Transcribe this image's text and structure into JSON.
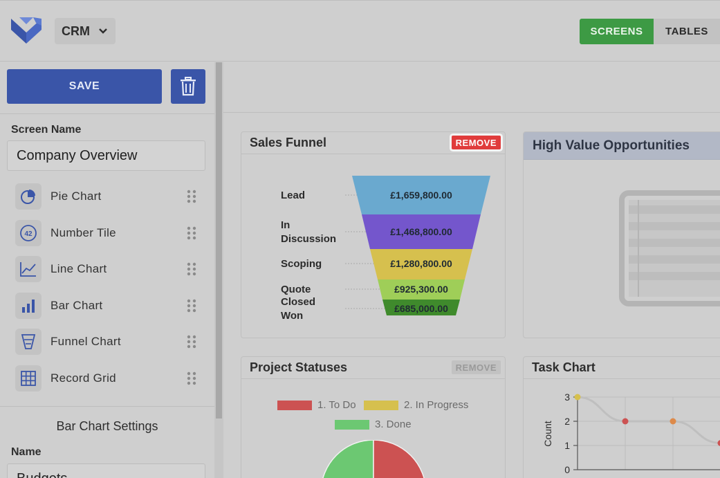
{
  "header": {
    "app_name": "CRM",
    "nav": [
      {
        "label": "SCREENS",
        "active": true
      },
      {
        "label": "TABLES",
        "active": false
      }
    ],
    "colors": {
      "active": "#3d9a44",
      "primary": "#3a55a8",
      "danger": "#e03c3c"
    }
  },
  "sidebar": {
    "save_label": "SAVE",
    "screen_name_label": "Screen Name",
    "screen_name_value": "Company Overview",
    "components": [
      {
        "label": "Pie Chart",
        "icon": "pie-chart-icon"
      },
      {
        "label": "Number Tile",
        "icon": "number-tile-icon"
      },
      {
        "label": "Line Chart",
        "icon": "line-chart-icon"
      },
      {
        "label": "Bar Chart",
        "icon": "bar-chart-icon"
      },
      {
        "label": "Funnel Chart",
        "icon": "funnel-chart-icon"
      },
      {
        "label": "Record Grid",
        "icon": "grid-icon"
      }
    ],
    "settings_title": "Bar Chart Settings",
    "name_label": "Name",
    "name_value": "Budgets",
    "number_tile_glyph": "42"
  },
  "cards": {
    "sales_funnel": {
      "title": "Sales Funnel",
      "remove_label": "REMOVE",
      "stages": [
        {
          "label": "Lead",
          "value": "£1,659,800.00",
          "color": "#6aa9cf"
        },
        {
          "label": "In Discussion",
          "value": "£1,468,800.00",
          "color": "#7456cc"
        },
        {
          "label": "Scoping",
          "value": "£1,280,800.00",
          "color": "#d6c04e"
        },
        {
          "label": "Quote",
          "value": "£925,300.00",
          "color": "#9fce58"
        },
        {
          "label": "Closed Won",
          "value": "£685,000.00",
          "color": "#3f8a2c"
        }
      ]
    },
    "high_value": {
      "title": "High Value Opportunities"
    },
    "project_statuses": {
      "title": "Project Statuses",
      "remove_label": "REMOVE",
      "legend": [
        {
          "label": "1. To Do",
          "color": "#cc5252"
        },
        {
          "label": "2. In Progress",
          "color": "#d6c04e"
        },
        {
          "label": "3. Done",
          "color": "#6cc872"
        }
      ]
    },
    "task_chart": {
      "title": "Task Chart"
    }
  },
  "chart_data": [
    {
      "type": "funnel",
      "title": "Sales Funnel",
      "categories": [
        "Lead",
        "In Discussion",
        "Scoping",
        "Quote",
        "Closed Won"
      ],
      "values": [
        1659800,
        1468800,
        1280800,
        925300,
        685000
      ]
    },
    {
      "type": "pie",
      "title": "Project Statuses",
      "categories": [
        "1. To Do",
        "2. In Progress",
        "3. Done"
      ],
      "values": [
        50,
        0,
        50
      ]
    },
    {
      "type": "line",
      "title": "Task Chart",
      "ylabel": "Count",
      "ylim": [
        0,
        3
      ],
      "yticks": [
        "0",
        "1",
        "2",
        "3"
      ],
      "values": [
        3,
        2,
        2,
        1.1
      ],
      "point_colors": [
        "#d6c04e",
        "#cc5252",
        "#dd8a4a",
        "#cc5252"
      ],
      "grid": true
    }
  ]
}
